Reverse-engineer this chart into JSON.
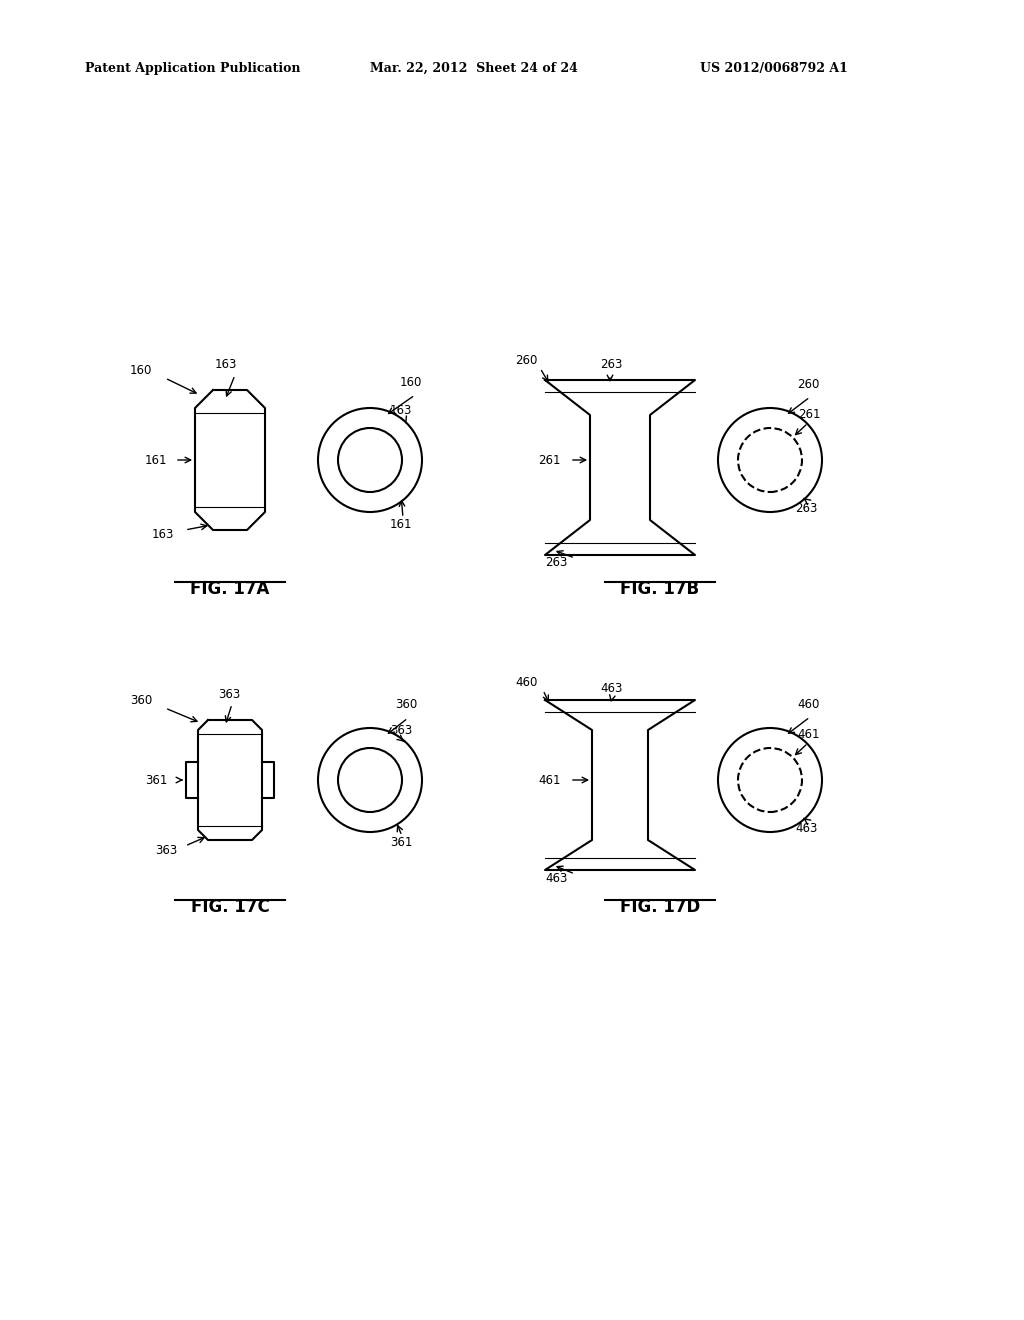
{
  "bg_color": "#ffffff",
  "header_left": "Patent Application Publication",
  "header_center": "Mar. 22, 2012  Sheet 24 of 24",
  "header_right": "US 2012/0068792 A1",
  "fig_labels": [
    "FIG. 17A",
    "FIG. 17B",
    "FIG. 17C",
    "FIG. 17D"
  ]
}
